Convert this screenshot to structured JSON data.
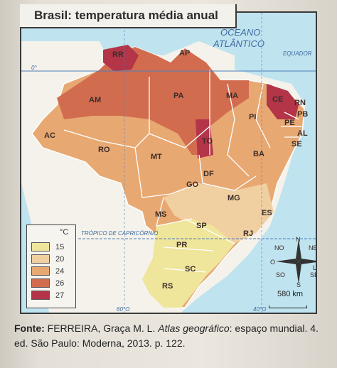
{
  "map": {
    "title": "Brasil: temperatura média anual",
    "ocean_label_1": "OCEANO",
    "ocean_label_2": "ATLÂNTICO",
    "equator_label": "EQUADOR",
    "equator_degree": "0°",
    "tropic_label": "TRÓPICO DE CAPRICÓRNIO",
    "lon_60": "60°O",
    "lon_40": "40°O",
    "states": [
      "RR",
      "AP",
      "AM",
      "PA",
      "MA",
      "CE",
      "RN",
      "PB",
      "PE",
      "AL",
      "SE",
      "PI",
      "AC",
      "RO",
      "TO",
      "BA",
      "MT",
      "DF",
      "GO",
      "MG",
      "ES",
      "MS",
      "SP",
      "RJ",
      "PR",
      "SC",
      "RS"
    ],
    "compass": {
      "n": "N",
      "ne": "NE",
      "no": "NO",
      "o": "O",
      "l": "L",
      "so": "SO",
      "se": "SE",
      "s": "S"
    },
    "scale": "580 km"
  },
  "legend": {
    "unit": "°C",
    "items": [
      {
        "value": "15",
        "color": "#efe59b"
      },
      {
        "value": "20",
        "color": "#f0cfa0"
      },
      {
        "value": "24",
        "color": "#e8a872"
      },
      {
        "value": "26",
        "color": "#d26c4f"
      },
      {
        "value": "27",
        "color": "#b43448"
      }
    ]
  },
  "source": {
    "label": "Fonte:",
    "text": " FERREIRA, Graça M. L. ",
    "book": "Atlas geográfico",
    "rest": ": espaço mundial. 4. ed. São Paulo: Moderna, 2013. p. 122."
  }
}
